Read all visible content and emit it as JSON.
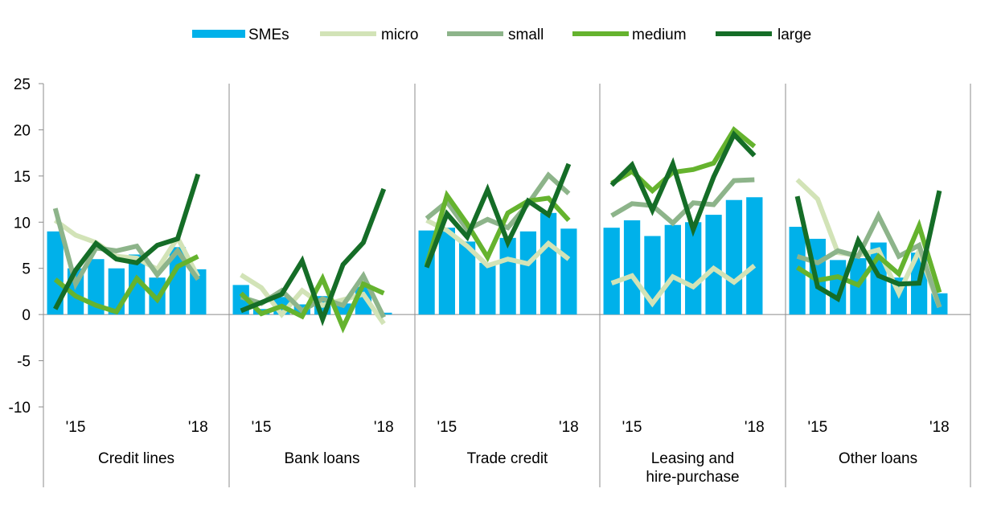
{
  "chart_data": {
    "type": "bar+line",
    "legend": {
      "placement": "top-center",
      "items": [
        {
          "label": "SMEs",
          "kind": "bar",
          "color": "#00b1ea"
        },
        {
          "label": "micro",
          "kind": "line",
          "color": "#d2e3b7"
        },
        {
          "label": "small",
          "kind": "line",
          "color": "#8db48a"
        },
        {
          "label": "medium",
          "kind": "line",
          "color": "#65b32e"
        },
        {
          "label": "large",
          "kind": "line",
          "color": "#156d27"
        }
      ]
    },
    "y_axis": {
      "ylim": [
        -10,
        25
      ],
      "ticks": [
        "25",
        "20",
        "15",
        "10",
        "5",
        "0",
        "-5",
        "-10"
      ],
      "tick_values": [
        25,
        20,
        15,
        10,
        5,
        0,
        -5,
        -10
      ]
    },
    "grid": false,
    "x_tick_labels": {
      "first": "'15",
      "last": "'18"
    },
    "panels": [
      {
        "label": [
          "Credit lines"
        ],
        "series": {
          "SMEs": [
            9.0,
            5.0,
            6.0,
            5.0,
            6.5,
            4.0,
            7.3,
            4.9
          ],
          "micro": [
            10.2,
            8.6,
            7.8,
            6.3,
            6.1,
            4.9,
            8.3,
            4.1
          ],
          "small": [
            11.5,
            3.3,
            7.2,
            6.9,
            7.4,
            4.3,
            6.9,
            3.8
          ],
          "medium": [
            3.8,
            2.0,
            1.0,
            0.3,
            3.9,
            1.6,
            5.2,
            6.3
          ],
          "large": [
            0.6,
            4.8,
            7.7,
            6.0,
            5.6,
            7.5,
            8.2,
            15.2
          ]
        }
      },
      {
        "label": [
          "Bank loans"
        ],
        "series": {
          "SMEs": [
            3.2,
            0.6,
            1.9,
            1.1,
            2.0,
            1.2,
            3.0,
            0.2
          ],
          "micro": [
            4.3,
            2.9,
            0.0,
            2.6,
            1.0,
            1.6,
            2.2,
            -1.0
          ],
          "small": [
            1.9,
            1.2,
            2.6,
            0.4,
            1.7,
            1.0,
            4.2,
            -0.3
          ],
          "medium": [
            2.3,
            0.1,
            0.9,
            -0.2,
            3.9,
            -1.4,
            3.3,
            2.3
          ],
          "large": [
            0.4,
            1.3,
            2.2,
            5.8,
            -0.5,
            5.4,
            7.8,
            13.6
          ]
        }
      },
      {
        "label": [
          "Trade credit"
        ],
        "series": {
          "SMEs": [
            9.1,
            9.4,
            7.9,
            5.6,
            8.3,
            9.0,
            11.0,
            9.3
          ],
          "micro": [
            10.2,
            9.1,
            7.4,
            5.3,
            6.0,
            5.5,
            7.7,
            6.0
          ],
          "small": [
            10.4,
            12.2,
            9.2,
            10.3,
            9.4,
            12.0,
            15.1,
            13.1
          ],
          "medium": [
            5.3,
            12.9,
            9.8,
            6.2,
            11.0,
            12.3,
            12.6,
            10.2
          ],
          "large": [
            5.1,
            10.9,
            8.4,
            13.5,
            7.8,
            12.3,
            10.8,
            16.3
          ]
        }
      },
      {
        "label": [
          "Leasing and",
          "hire-purchase"
        ],
        "series": {
          "SMEs": [
            9.4,
            10.2,
            8.5,
            9.7,
            10.0,
            10.8,
            12.4,
            12.7
          ],
          "micro": [
            3.4,
            4.2,
            1.2,
            4.1,
            3.0,
            5.0,
            3.5,
            5.3
          ],
          "small": [
            10.7,
            12.0,
            11.8,
            9.9,
            12.1,
            11.9,
            14.5,
            14.6
          ],
          "medium": [
            14.2,
            15.5,
            13.4,
            15.4,
            15.7,
            16.4,
            20.0,
            18.2
          ],
          "large": [
            14.0,
            16.2,
            11.3,
            16.3,
            9.2,
            14.9,
            19.5,
            17.2
          ]
        }
      },
      {
        "label": [
          "Other loans"
        ],
        "series": {
          "SMEs": [
            9.5,
            8.2,
            5.9,
            6.1,
            7.8,
            4.0,
            6.7,
            2.3
          ],
          "micro": [
            14.6,
            12.5,
            6.7,
            6.4,
            7.0,
            2.3,
            6.9,
            0.8
          ],
          "small": [
            6.3,
            5.6,
            6.9,
            6.3,
            10.7,
            6.3,
            7.5,
            0.8
          ],
          "medium": [
            5.1,
            3.7,
            4.1,
            3.2,
            6.3,
            4.4,
            9.6,
            2.4
          ],
          "large": [
            12.8,
            3.0,
            1.7,
            8.0,
            4.2,
            3.3,
            3.4,
            13.4
          ]
        }
      }
    ]
  }
}
